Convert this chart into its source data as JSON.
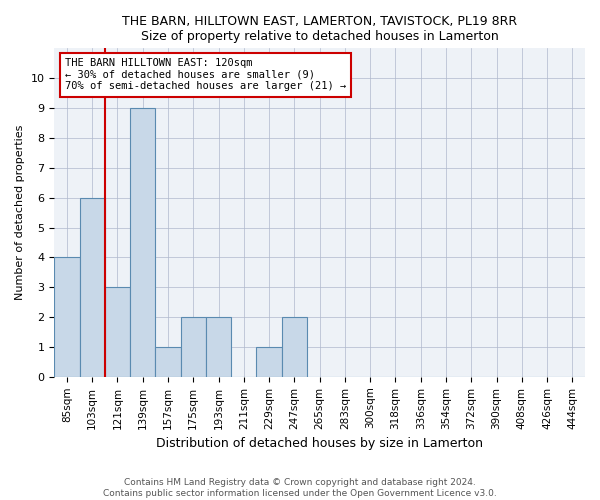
{
  "title": "THE BARN, HILLTOWN EAST, LAMERTON, TAVISTOCK, PL19 8RR",
  "subtitle": "Size of property relative to detached houses in Lamerton",
  "xlabel": "Distribution of detached houses by size in Lamerton",
  "ylabel": "Number of detached properties",
  "footnote": "Contains HM Land Registry data © Crown copyright and database right 2024.\nContains public sector information licensed under the Open Government Licence v3.0.",
  "bin_labels": [
    "85sqm",
    "103sqm",
    "121sqm",
    "139sqm",
    "157sqm",
    "175sqm",
    "193sqm",
    "211sqm",
    "229sqm",
    "247sqm",
    "265sqm",
    "283sqm",
    "300sqm",
    "318sqm",
    "336sqm",
    "354sqm",
    "372sqm",
    "390sqm",
    "408sqm",
    "426sqm",
    "444sqm"
  ],
  "bar_values": [
    4,
    6,
    3,
    9,
    1,
    2,
    2,
    0,
    1,
    2,
    0,
    0,
    0,
    0,
    0,
    0,
    0,
    0,
    0,
    0,
    0
  ],
  "bar_color": "#c8d8e8",
  "bar_edge_color": "#5a8ab0",
  "vline_position": 1.5,
  "vline_color": "#cc0000",
  "annotation_line1": "THE BARN HILLTOWN EAST: 120sqm",
  "annotation_line2": "← 30% of detached houses are smaller (9)",
  "annotation_line3": "70% of semi-detached houses are larger (21) →",
  "annotation_box_color": "#cc0000",
  "ylim": [
    0,
    11
  ],
  "yticks": [
    0,
    1,
    2,
    3,
    4,
    5,
    6,
    7,
    8,
    9,
    10
  ],
  "plot_bg_color": "#eef2f7"
}
